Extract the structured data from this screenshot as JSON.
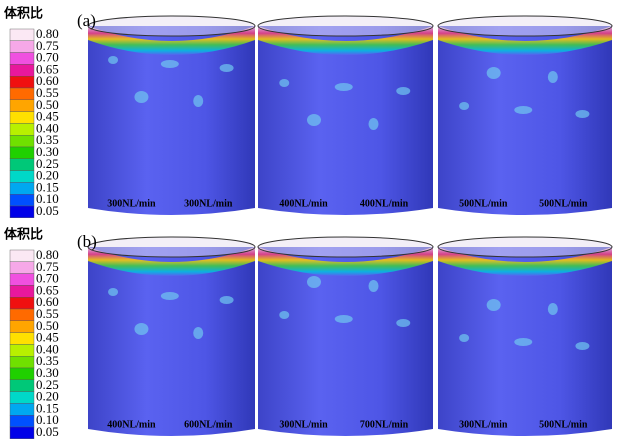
{
  "legend_colors": [
    "#fbe8f4",
    "#f6a8e8",
    "#f050e0",
    "#e8189c",
    "#f01010",
    "#ff6a00",
    "#ffa500",
    "#ffe000",
    "#b8f000",
    "#70e000",
    "#20d000",
    "#00c878",
    "#00d8c8",
    "#00a8f0",
    "#0050ff",
    "#0000e8"
  ],
  "panels": [
    {
      "label": "(a)",
      "legend_title": "体积比",
      "legend_labels": [
        "0.80",
        "0.75",
        "0.70",
        "0.65",
        "0.60",
        "0.55",
        "0.50",
        "0.45",
        "0.40",
        "0.35",
        "0.30",
        "0.25",
        "0.20",
        "0.15",
        "0.10",
        "0.05"
      ],
      "cylinders": [
        {
          "labels": [
            "300NL/min",
            "300NL/min"
          ]
        },
        {
          "labels": [
            "400NL/min",
            "400NL/min"
          ]
        },
        {
          "labels": [
            "500NL/min",
            "500NL/min"
          ]
        }
      ]
    },
    {
      "label": "(b)",
      "legend_title": "体积比",
      "legend_labels": [
        "0.80",
        "0.75",
        "0.70",
        "0.65",
        "0.60",
        "0.55",
        "0.50",
        "0.45",
        "0.40",
        "0.35",
        "0.30",
        "0.25",
        "0.20",
        "0.15",
        "0.10",
        "0.05"
      ],
      "cylinders": [
        {
          "labels": [
            "400NL/min",
            "600NL/min"
          ]
        },
        {
          "labels": [
            "300NL/min",
            "700NL/min"
          ]
        },
        {
          "labels": [
            "300NL/min",
            "500NL/min"
          ]
        }
      ]
    }
  ]
}
